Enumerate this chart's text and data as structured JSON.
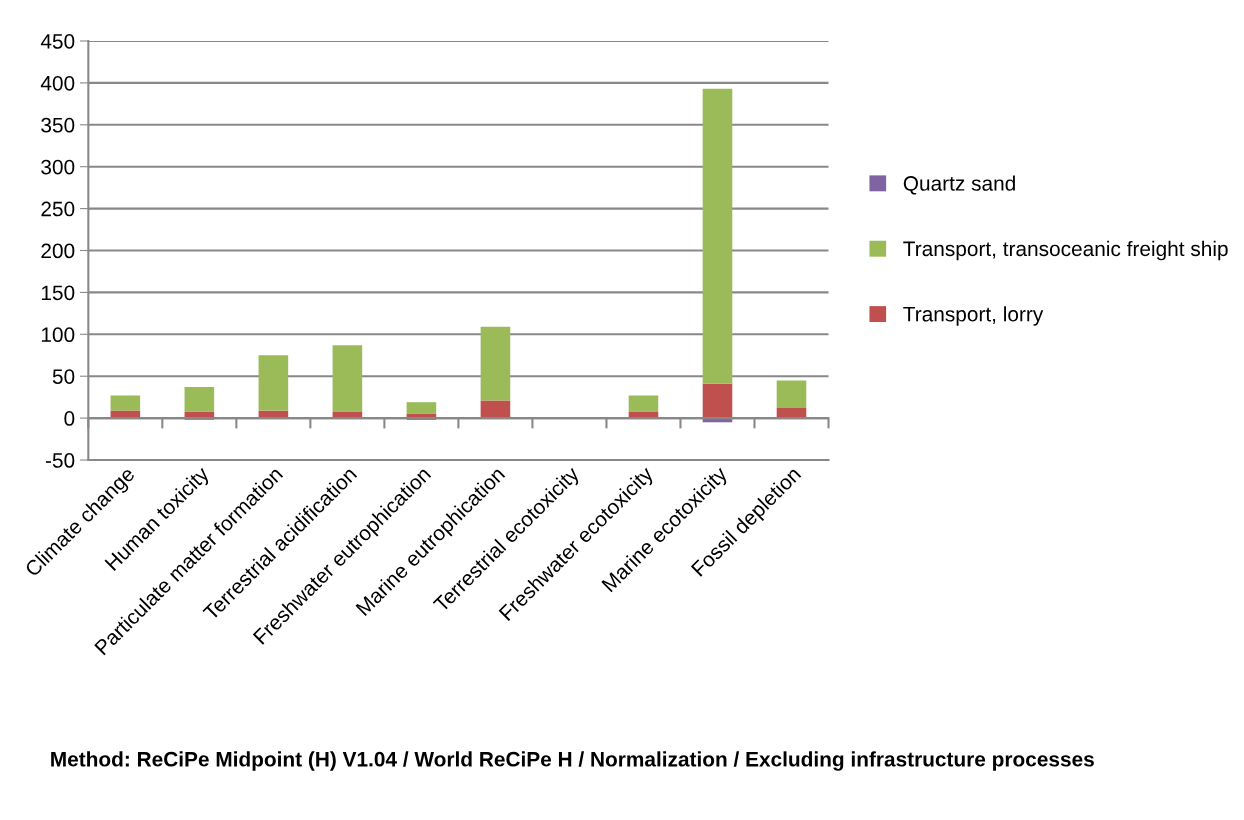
{
  "chart_data": {
    "type": "bar",
    "stacked": true,
    "categories": [
      "Climate change",
      "Human toxicity",
      "Particulate matter formation",
      "Terrestrial acidification",
      "Freshwater eutrophication",
      "Marine eutrophication",
      "Terrestrial ecotoxicity",
      "Freshwater ecotoxicity",
      "Marine ecotoxicity",
      "Fossil depletion"
    ],
    "series": [
      {
        "name": "Transport, lorry",
        "color": "#c0504d",
        "values": [
          9,
          8,
          9,
          8,
          5,
          21,
          0,
          8,
          41,
          12
        ]
      },
      {
        "name": "Transport, transoceanic freight ship",
        "color": "#9bbb59",
        "values": [
          18,
          29,
          66,
          79,
          14,
          88,
          1,
          19,
          352,
          33
        ]
      },
      {
        "name": "Quartz sand",
        "color": "#8064a2",
        "values": [
          -1,
          -2,
          null,
          null,
          -2,
          null,
          null,
          -1,
          -5,
          null
        ]
      }
    ],
    "ylim": [
      -50,
      450
    ],
    "yticks": [
      -50,
      0,
      50,
      100,
      150,
      200,
      250,
      300,
      350,
      400,
      450
    ],
    "grid": "y",
    "legend": "right",
    "annotations": [
      "Method: ReCiPe Midpoint (H) V1.04 / World ReCiPe H / Normalization / Excluding infrastructure processes"
    ]
  }
}
